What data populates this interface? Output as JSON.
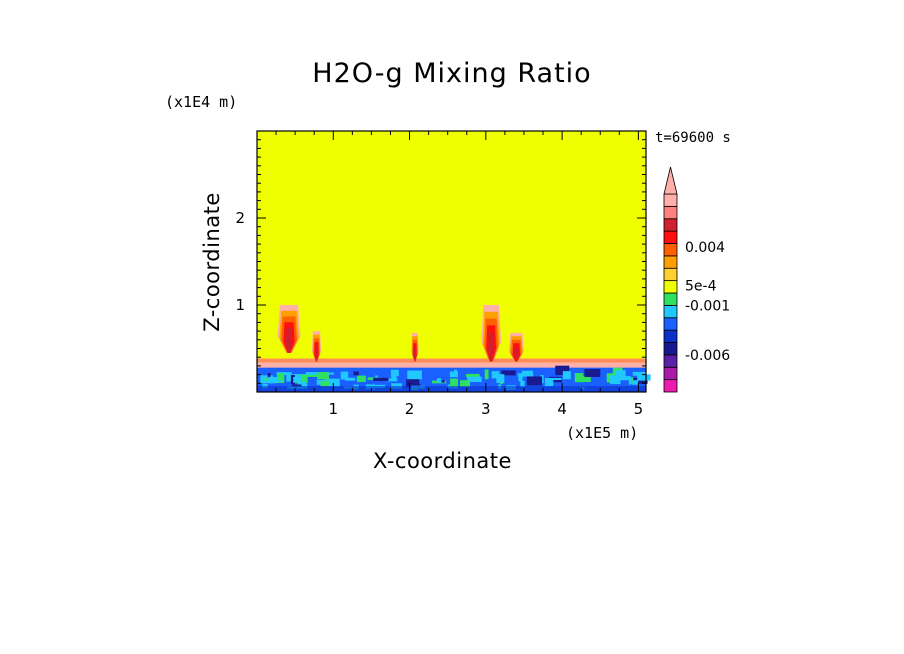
{
  "chart_data": {
    "type": "heatmap",
    "title": "H2O-g Mixing Ratio",
    "xlabel": "X-coordinate",
    "ylabel": "Z-coordinate",
    "x_unit": "(x1E5 m)",
    "z_unit": "(x1E4 m)",
    "time_label": "t=69600 s",
    "xlim": [
      0,
      5.1
    ],
    "ylim": [
      0,
      3
    ],
    "x_ticks": [
      1,
      2,
      3,
      4,
      5
    ],
    "y_ticks": [
      1,
      2
    ],
    "colorbar": {
      "colors": [
        "#ee1ab0",
        "#a81aa8",
        "#5a20a8",
        "#1a1a90",
        "#0c30c8",
        "#1a60ff",
        "#20c8ff",
        "#30e060",
        "#f0ff00",
        "#ffd030",
        "#ffa000",
        "#ff6000",
        "#ff1010",
        "#d02030",
        "#ff8080",
        "#ffb0a8"
      ],
      "labels": [
        {
          "text": "-0.006",
          "level": 3
        },
        {
          "text": "-0.001",
          "level": 7
        },
        {
          "text": "5e-4",
          "level": 8.6
        },
        {
          "text": "0.004",
          "level": 11.7
        }
      ],
      "extend": "max"
    },
    "background_value_color": "#f0ff00",
    "plumes": [
      {
        "x": 0.42,
        "base": 0.45,
        "top": 1.0,
        "width": 0.3
      },
      {
        "x": 0.78,
        "base": 0.35,
        "top": 0.7,
        "width": 0.12
      },
      {
        "x": 2.07,
        "base": 0.35,
        "top": 0.68,
        "width": 0.1
      },
      {
        "x": 3.07,
        "base": 0.35,
        "top": 1.0,
        "width": 0.26
      },
      {
        "x": 3.4,
        "base": 0.35,
        "top": 0.68,
        "width": 0.2
      }
    ],
    "boundary_layer": {
      "top": 0.35,
      "moist_top": 0.28
    }
  }
}
